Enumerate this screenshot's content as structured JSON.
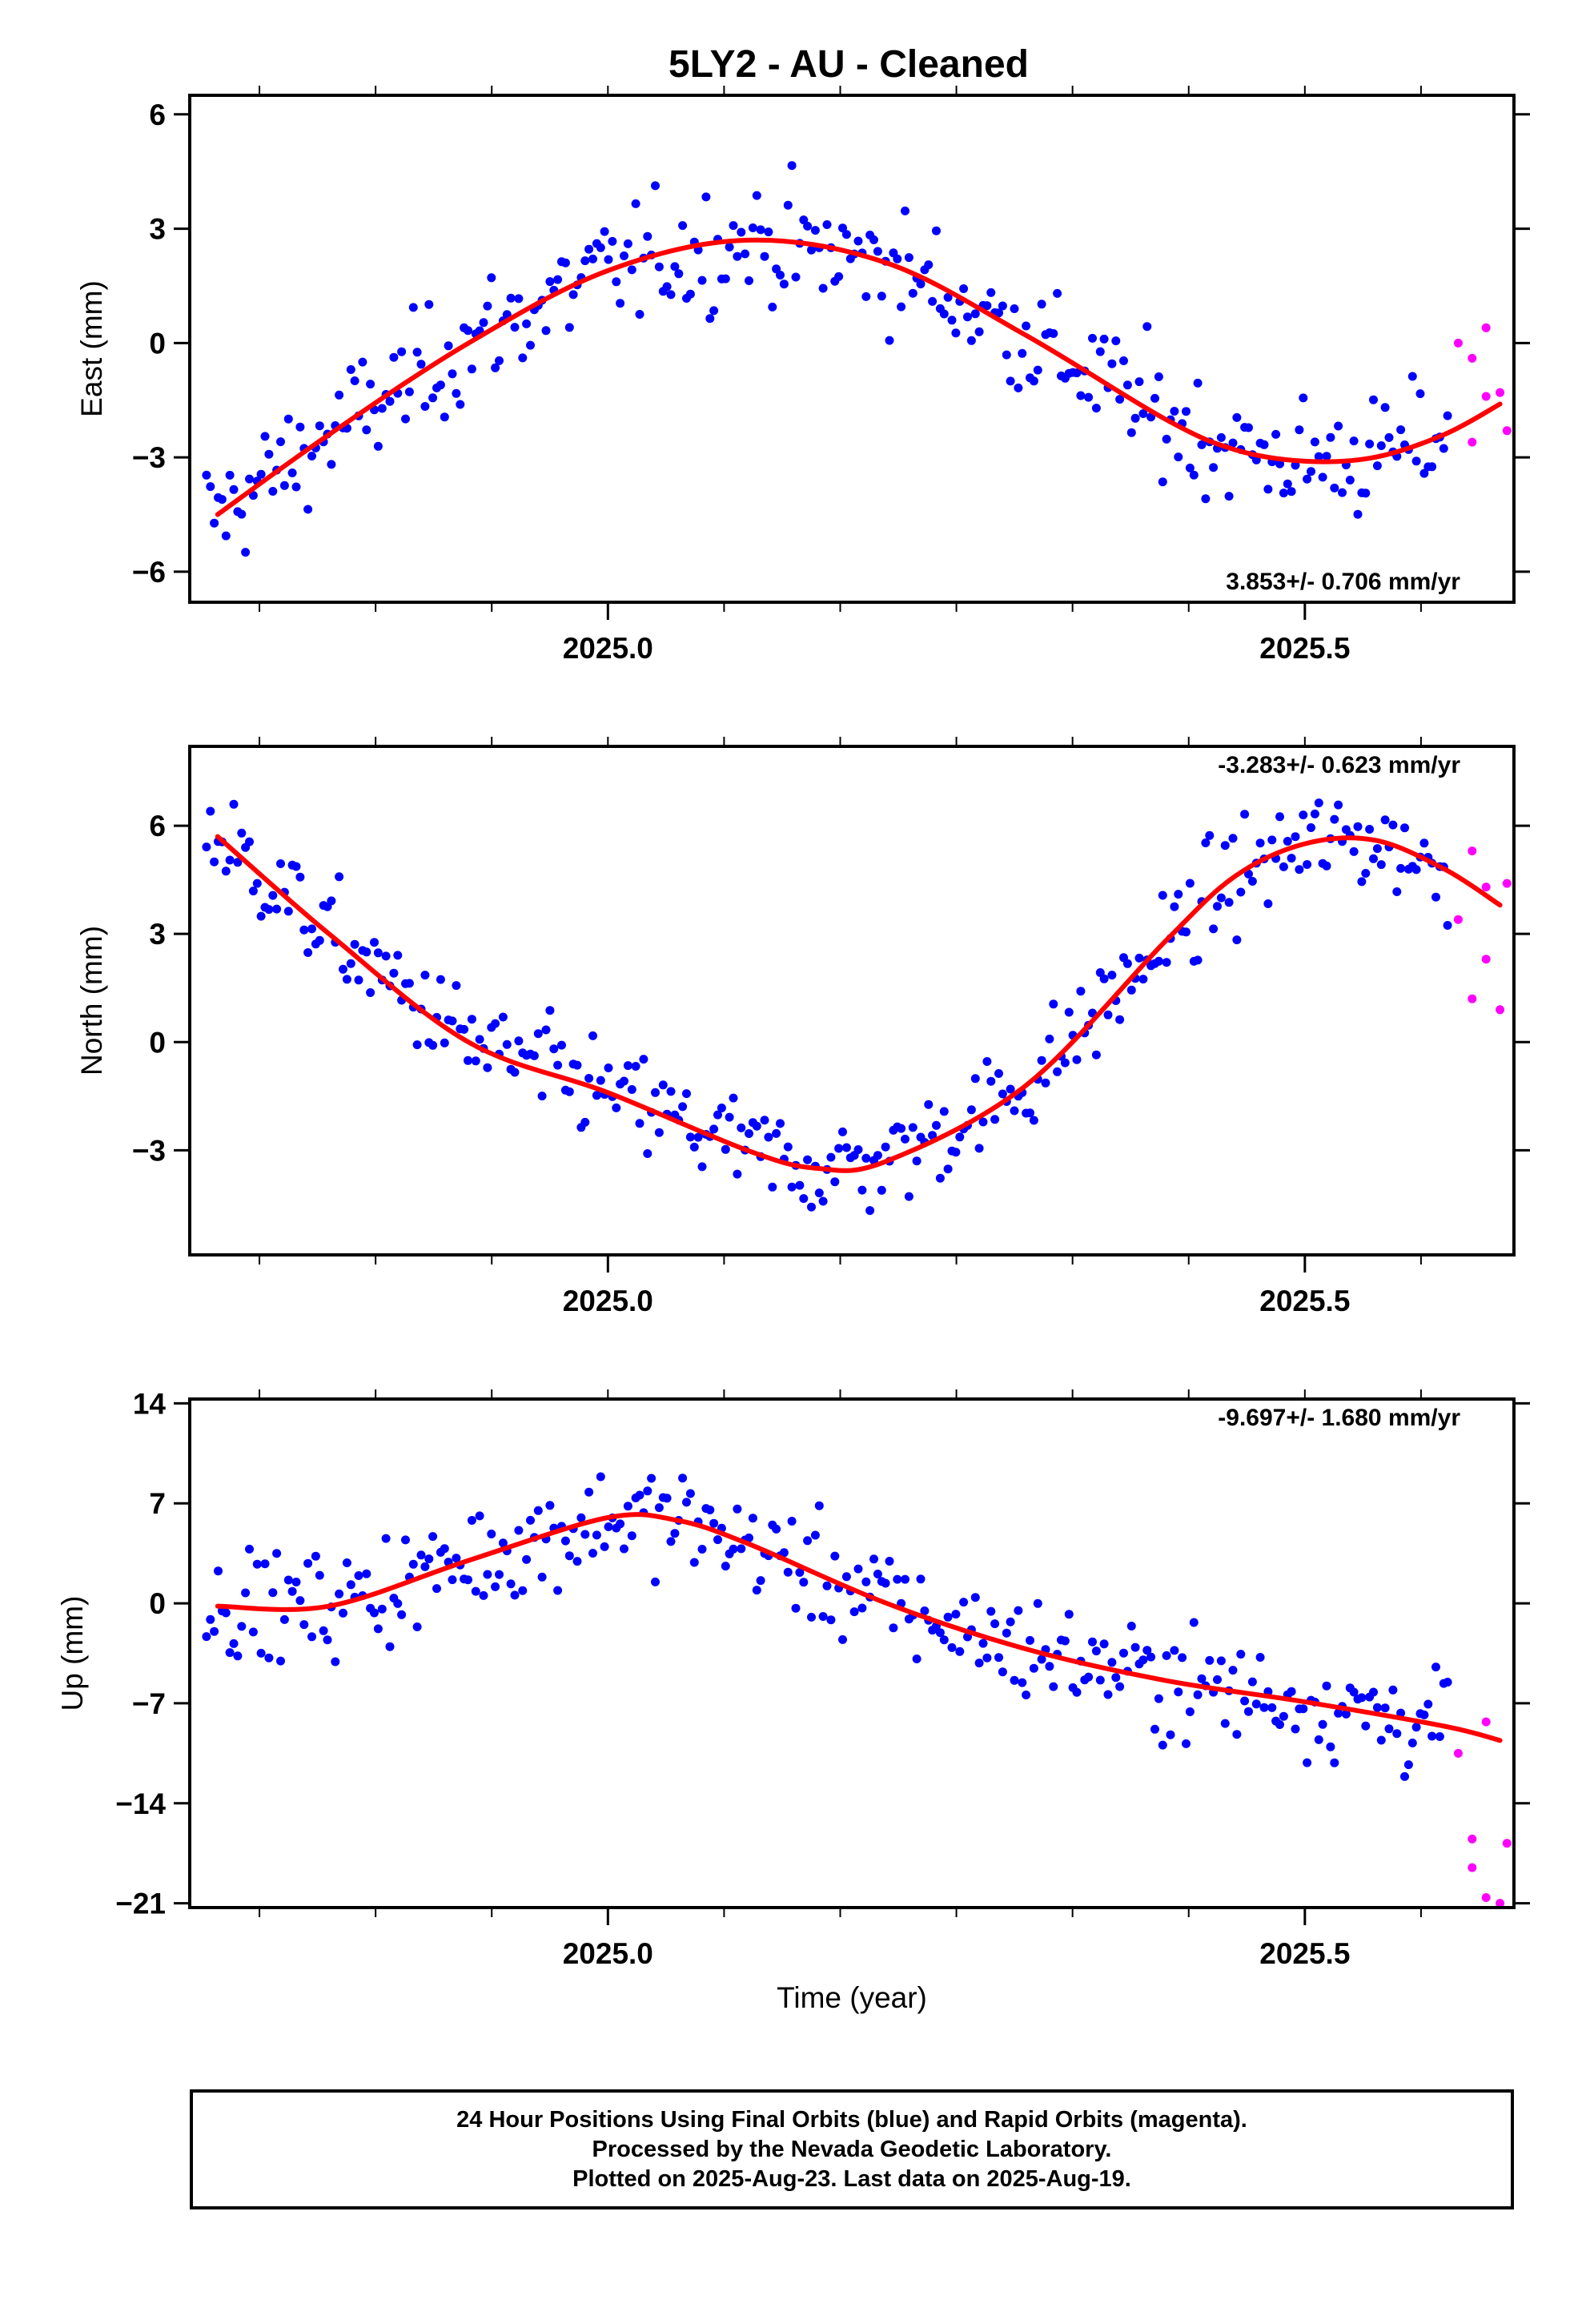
{
  "page_title": "5LY2  - AU - Cleaned",
  "footer": {
    "line1": "24 Hour Positions Using Final Orbits (blue) and Rapid Orbits (magenta).",
    "line2": "Processed by the Nevada Geodetic Laboratory.",
    "line3": "Plotted on 2025-Aug-23. Last data on 2025-Aug-19."
  },
  "colors": {
    "final": "#0000ff",
    "rapid": "#ff00ff",
    "fit": "#ff0000",
    "frame": "#000000"
  },
  "chart_data": [
    {
      "type": "scatter",
      "ylabel": "East (mm)",
      "xlim": [
        2024.7,
        2025.65
      ],
      "ylim": [
        -6.8,
        6.5
      ],
      "yticks": [
        6,
        3,
        0,
        -3,
        -6
      ],
      "ytick_labels": [
        "6",
        "3",
        "0",
        "−3",
        "−6"
      ],
      "xticks": [
        2025.0,
        2025.5
      ],
      "xtick_labels": [
        "2025.0",
        "2025.5"
      ],
      "rate": "3.853+/- 0.706 mm/yr",
      "rate_position": "bottom-right",
      "fit": {
        "x": [
          2024.72,
          2024.8,
          2024.9,
          2025.0,
          2025.1,
          2025.2,
          2025.3,
          2025.4,
          2025.45,
          2025.5,
          2025.55,
          2025.6,
          2025.64
        ],
        "y": [
          -4.5,
          -2.4,
          0.0,
          1.9,
          2.7,
          2.1,
          0.2,
          -2.0,
          -2.8,
          -3.1,
          -3.0,
          -2.4,
          -1.6
        ]
      },
      "rapid": {
        "x": [
          2025.61,
          2025.62,
          2025.63,
          2025.64,
          2025.62,
          2025.63,
          2025.645
        ],
        "y": [
          0.0,
          -0.4,
          0.4,
          -1.3,
          -2.6,
          -1.4,
          -2.3
        ]
      },
      "final_scatter": 2.0,
      "grid": false
    },
    {
      "type": "scatter",
      "ylabel": "North (mm)",
      "xlim": [
        2024.7,
        2025.65
      ],
      "ylim": [
        -5.9,
        8.2
      ],
      "yticks": [
        6,
        3,
        0,
        -3
      ],
      "ytick_labels": [
        "6",
        "3",
        "0",
        "−3"
      ],
      "xticks": [
        2025.0,
        2025.5
      ],
      "xtick_labels": [
        "2025.0",
        "2025.5"
      ],
      "rate": "-3.283+/- 0.623 mm/yr",
      "rate_position": "top-right",
      "fit": {
        "x": [
          2024.72,
          2024.8,
          2024.9,
          2025.0,
          2025.1,
          2025.15,
          2025.2,
          2025.3,
          2025.4,
          2025.45,
          2025.5,
          2025.55,
          2025.6,
          2025.64
        ],
        "y": [
          5.7,
          3.0,
          0.0,
          -1.4,
          -3.0,
          -3.5,
          -3.3,
          -1.2,
          2.8,
          4.6,
          5.5,
          5.6,
          4.8,
          3.8
        ]
      },
      "rapid": {
        "x": [
          2025.61,
          2025.62,
          2025.63,
          2025.64,
          2025.62,
          2025.63,
          2025.645
        ],
        "y": [
          3.4,
          5.3,
          2.3,
          0.9,
          1.2,
          4.3,
          4.4
        ]
      },
      "final_scatter": 1.8,
      "grid": false
    },
    {
      "type": "scatter",
      "ylabel": "Up (mm)",
      "xlim": [
        2024.7,
        2025.65
      ],
      "ylim": [
        -21.3,
        14.3
      ],
      "yticks": [
        14,
        7,
        0,
        -7,
        -14,
        -21
      ],
      "ytick_labels": [
        "14",
        "7",
        "0",
        "−7",
        "−14",
        "−21"
      ],
      "xticks": [
        2025.0,
        2025.5
      ],
      "xtick_labels": [
        "2025.0",
        "2025.5"
      ],
      "xlabel": "Time (year)",
      "rate": "-9.697+/- 1.680 mm/yr",
      "rate_position": "top-right",
      "fit": {
        "x": [
          2024.72,
          2024.8,
          2024.9,
          2025.0,
          2025.05,
          2025.1,
          2025.2,
          2025.3,
          2025.4,
          2025.5,
          2025.6,
          2025.64
        ],
        "y": [
          -0.2,
          -0.2,
          3.0,
          6.0,
          5.8,
          4.2,
          0.0,
          -3.2,
          -5.4,
          -6.9,
          -8.6,
          -9.6
        ]
      },
      "rapid": {
        "x": [
          2025.61,
          2025.62,
          2025.63,
          2025.64,
          2025.62,
          2025.63,
          2025.645
        ],
        "y": [
          -10.5,
          -18.5,
          -20.6,
          -21.0,
          -16.5,
          -8.3,
          -16.8
        ]
      },
      "final_scatter": 4.8,
      "grid": false
    }
  ]
}
